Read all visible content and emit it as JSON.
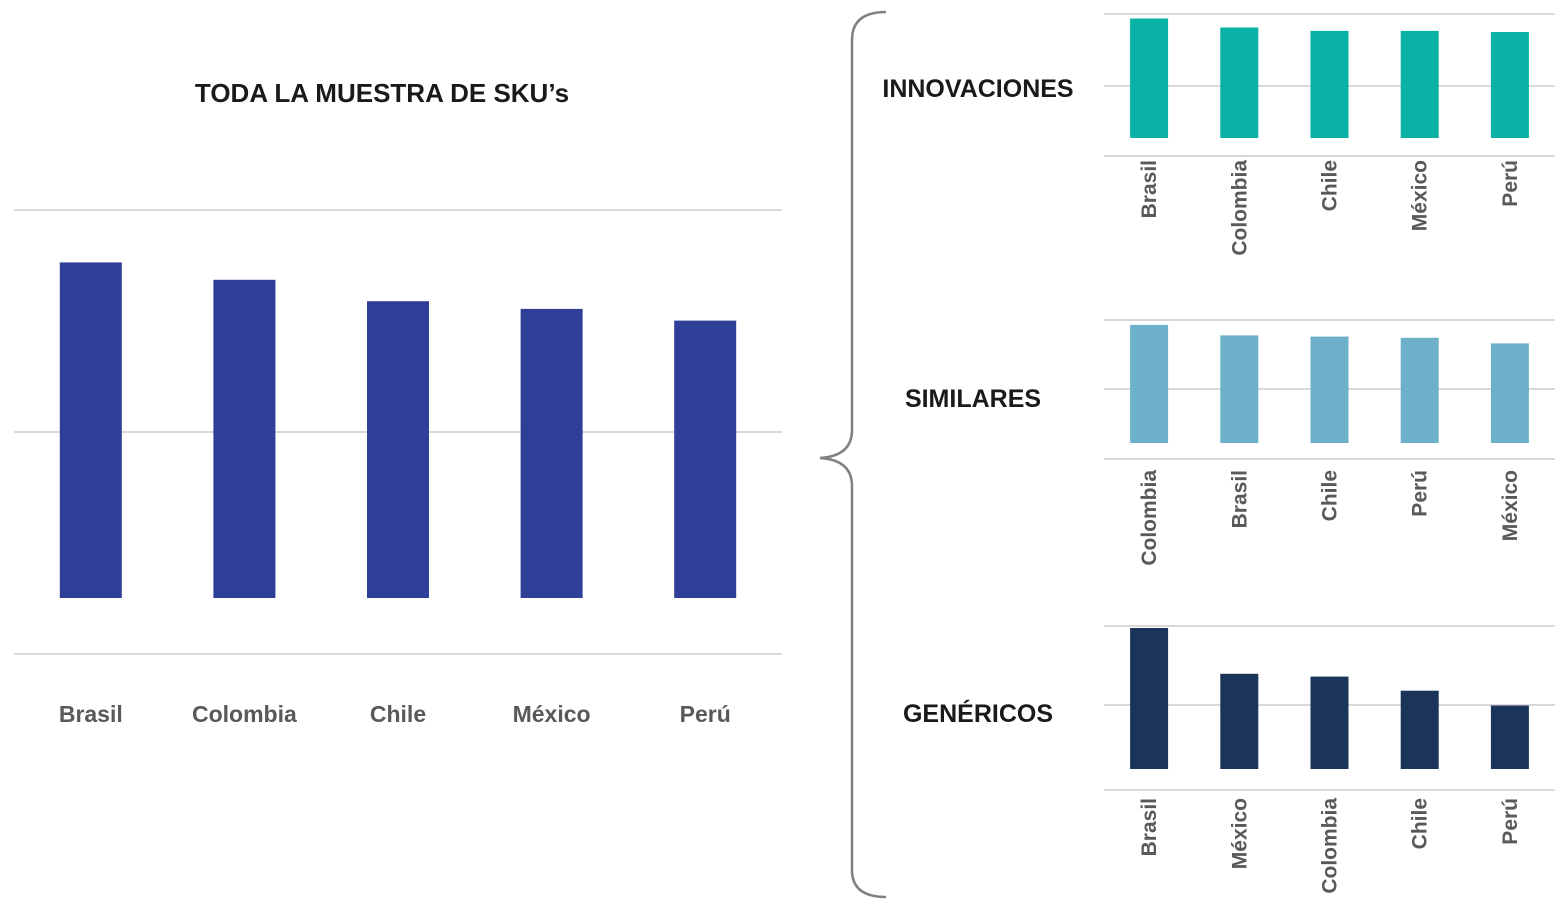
{
  "chart_data": [
    {
      "id": "main",
      "type": "bar",
      "title": "TODA LA MUESTRA DE SKU’s",
      "categories": [
        "Brasil",
        "Colombia",
        "Chile",
        "México",
        "Perú"
      ],
      "values": [
        1.73,
        1.64,
        1.53,
        1.49,
        1.43
      ],
      "ylim": [
        0,
        2
      ],
      "grid": true,
      "color": "#2f3f97"
    },
    {
      "id": "innovaciones",
      "type": "bar",
      "title": "INNOVACIONES",
      "categories": [
        "Brasil",
        "Colombia",
        "Chile",
        "México",
        "Perú"
      ],
      "values": [
        1.06,
        0.98,
        0.95,
        0.95,
        0.94
      ],
      "ylim": [
        0,
        1.1
      ],
      "grid": true,
      "color": "#0ab2a6"
    },
    {
      "id": "similares",
      "type": "bar",
      "title": "SIMILARES",
      "categories": [
        "Colombia",
        "Brasil",
        "Chile",
        "Perú",
        "México"
      ],
      "values": [
        1.92,
        1.75,
        1.73,
        1.71,
        1.62
      ],
      "ylim": [
        0,
        2
      ],
      "grid": true,
      "color": "#6cb0ca"
    },
    {
      "id": "genericos",
      "type": "bar",
      "title": "GENÉRICOS",
      "categories": [
        "Brasil",
        "México",
        "Colombia",
        "Chile",
        "Perú"
      ],
      "values": [
        2.0,
        1.35,
        1.31,
        1.11,
        0.9
      ],
      "ylim": [
        0,
        2
      ],
      "grid": true,
      "color": "#1b345a"
    }
  ]
}
